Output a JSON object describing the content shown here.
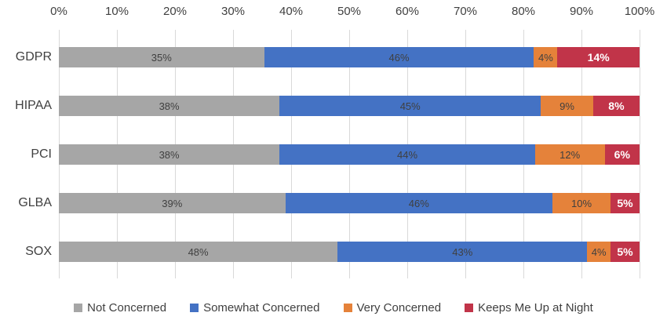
{
  "chart_data": {
    "type": "bar",
    "orientation": "horizontal",
    "stacked": true,
    "title": "",
    "categories": [
      "GDPR",
      "HIPAA",
      "PCI",
      "GLBA",
      "SOX"
    ],
    "series": [
      {
        "name": "Not Concerned",
        "color": "#a6a6a6",
        "label_style": "dark",
        "values": [
          35,
          38,
          38,
          39,
          48
        ]
      },
      {
        "name": "Somewhat Concerned",
        "color": "#4472c4",
        "label_style": "dark",
        "values": [
          46,
          45,
          44,
          46,
          43
        ]
      },
      {
        "name": "Very Concerned",
        "color": "#e5823a",
        "label_style": "dark",
        "values": [
          4,
          9,
          12,
          10,
          4
        ]
      },
      {
        "name": "Keeps Me Up at Night",
        "color": "#c13449",
        "label_style": "white",
        "values": [
          14,
          8,
          6,
          5,
          5
        ]
      }
    ],
    "data_labels": [
      [
        "35%",
        "46%",
        "4%",
        "14%"
      ],
      [
        "38%",
        "45%",
        "9%",
        "8%"
      ],
      [
        "38%",
        "44%",
        "12%",
        "6%"
      ],
      [
        "39%",
        "46%",
        "10%",
        "5%"
      ],
      [
        "48%",
        "43%",
        "4%",
        "5%"
      ]
    ],
    "xlabel": "",
    "ylabel": "",
    "x_axis": {
      "position": "top",
      "range": [
        0,
        100
      ],
      "ticks": [
        "0%",
        "10%",
        "20%",
        "30%",
        "40%",
        "50%",
        "60%",
        "70%",
        "80%",
        "90%",
        "100%"
      ]
    },
    "grid": true,
    "gridline_color": "#d9d9d9",
    "legend_position": "bottom",
    "legend_entries": [
      "Not Concerned",
      "Somewhat Concerned",
      "Very Concerned",
      "Keeps Me Up at Night"
    ]
  },
  "style": {
    "text_color": "#404040",
    "background": "#ffffff"
  }
}
